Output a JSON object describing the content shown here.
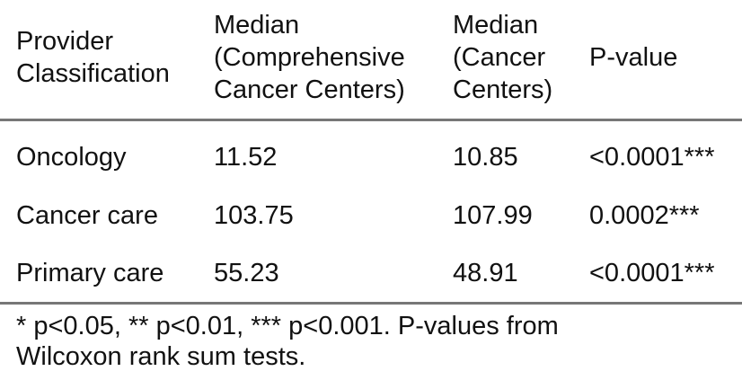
{
  "table": {
    "headers": [
      {
        "lines": [
          "Provider",
          "Classification"
        ]
      },
      {
        "lines": [
          "Median",
          "(Comprehensive",
          "Cancer Centers)"
        ]
      },
      {
        "lines": [
          "Median",
          "(Cancer",
          "Centers)"
        ]
      },
      {
        "lines": [
          "P-value"
        ]
      }
    ],
    "rows": [
      {
        "provider": "Oncology",
        "median_ccc": "11.52",
        "median_cc": "10.85",
        "p_value": "<0.0001***"
      },
      {
        "provider": "Cancer care",
        "median_ccc": "103.75",
        "median_cc": "107.99",
        "p_value": "0.0002***"
      },
      {
        "provider": "Primary care",
        "median_ccc": "55.23",
        "median_cc": "48.91",
        "p_value": "<0.0001***"
      }
    ]
  },
  "footnote": {
    "line1": "* p<0.05, ** p<0.01, *** p<0.001. P-values from",
    "line2": "Wilcoxon rank sum tests."
  }
}
